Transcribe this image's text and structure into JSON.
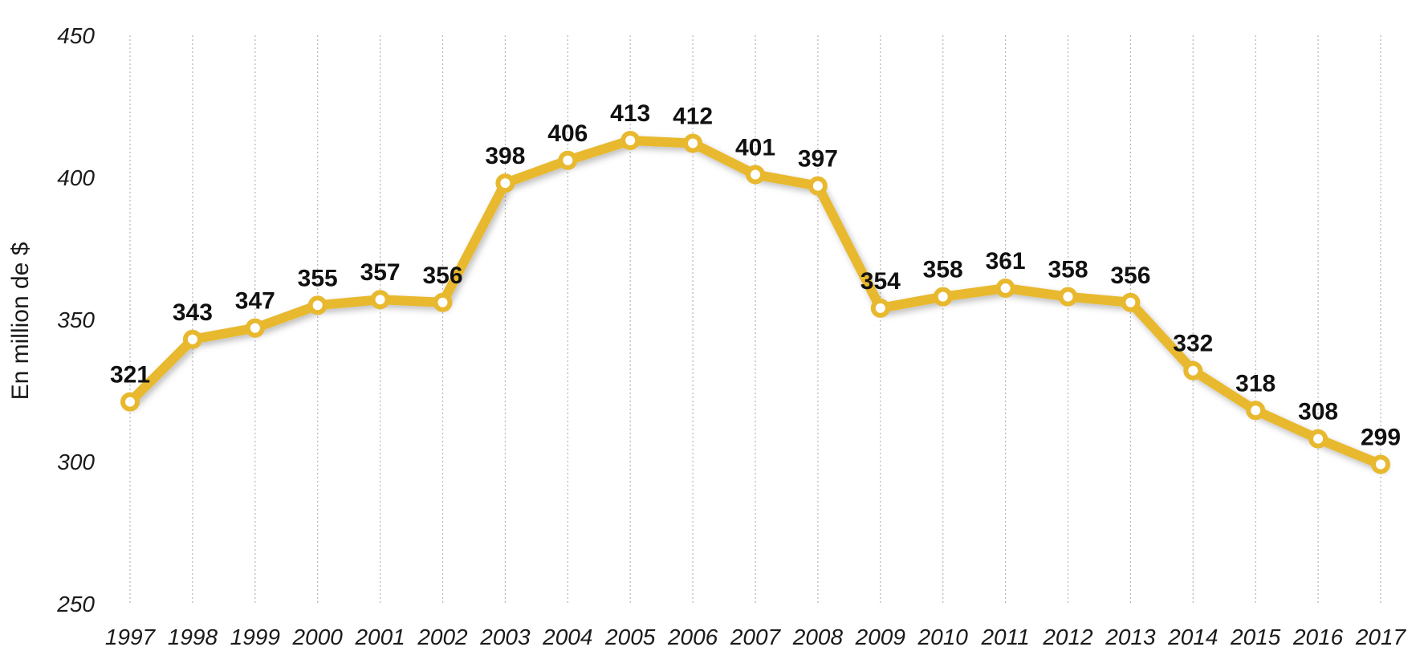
{
  "chart_data": {
    "type": "line",
    "ylabel": "En million de $",
    "ylim": [
      250,
      450
    ],
    "yticks": [
      250,
      300,
      350,
      400,
      450
    ],
    "grid": "vertical dotted",
    "categories": [
      "1997",
      "1998",
      "1999",
      "2000",
      "2001",
      "2002",
      "2003",
      "2004",
      "2005",
      "2006",
      "2007",
      "2008",
      "2009",
      "2010",
      "2011",
      "2012",
      "2013",
      "2014",
      "2015",
      "2016",
      "2017"
    ],
    "series": [
      {
        "values": [
          321,
          343,
          347,
          355,
          357,
          356,
          398,
          406,
          413,
          412,
          401,
          397,
          354,
          358,
          361,
          358,
          356,
          332,
          318,
          308,
          299
        ],
        "color": "#E8B92F"
      }
    ],
    "data_labels": [
      "321",
      "343",
      "347",
      "355",
      "357",
      "356",
      "398",
      "406",
      "413",
      "412",
      "401",
      "397",
      "354",
      "358",
      "361",
      "358",
      "356",
      "332",
      "318",
      "308",
      "299"
    ]
  }
}
